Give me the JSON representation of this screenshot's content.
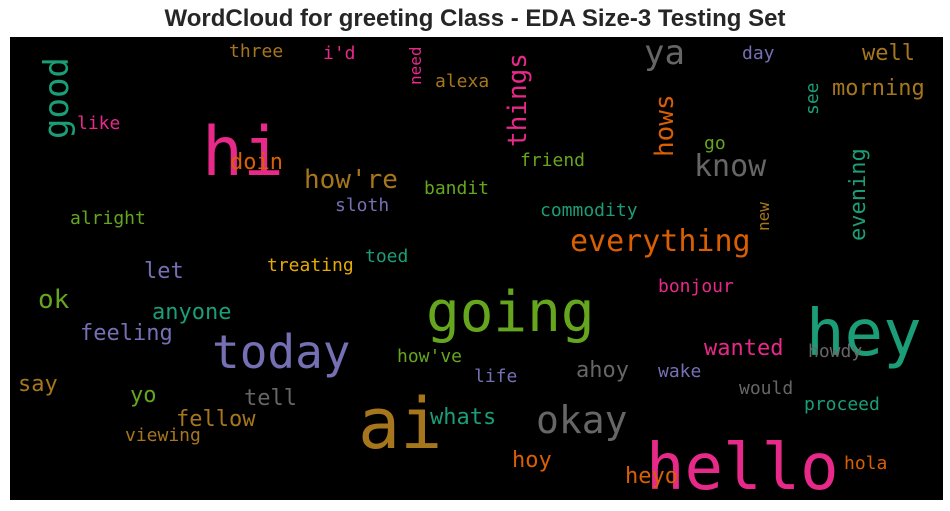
{
  "title": "WordCloud for greeting Class - EDA Size-3 Testing Set",
  "chart_data": {
    "type": "wordcloud",
    "background": "#000000",
    "words": [
      {
        "text": "hey",
        "color": "#1b9e77"
      },
      {
        "text": "hello",
        "color": "#e7298a"
      },
      {
        "text": "hi",
        "color": "#e7298a"
      },
      {
        "text": "ai",
        "color": "#a6761d"
      },
      {
        "text": "going",
        "color": "#66a61e"
      },
      {
        "text": "today",
        "color": "#7570b3"
      },
      {
        "text": "okay",
        "color": "#666666"
      },
      {
        "text": "everything",
        "color": "#d95f02"
      },
      {
        "text": "good",
        "color": "#1b9e77"
      },
      {
        "text": "ya",
        "color": "#666666"
      },
      {
        "text": "know",
        "color": "#666666"
      },
      {
        "text": "things",
        "color": "#e7298a"
      },
      {
        "text": "hows",
        "color": "#d95f02"
      },
      {
        "text": "how're",
        "color": "#a6761d"
      },
      {
        "text": "ok",
        "color": "#66a61e"
      },
      {
        "text": "evening",
        "color": "#1b9e77"
      },
      {
        "text": "morning",
        "color": "#a6761d"
      },
      {
        "text": "well",
        "color": "#a6761d"
      },
      {
        "text": "feeling",
        "color": "#7570b3"
      },
      {
        "text": "anyone",
        "color": "#1b9e77"
      },
      {
        "text": "wanted",
        "color": "#e7298a"
      },
      {
        "text": "fellow",
        "color": "#a6761d"
      },
      {
        "text": "whats",
        "color": "#1b9e77"
      },
      {
        "text": "ahoy",
        "color": "#666666"
      },
      {
        "text": "heyo",
        "color": "#d95f02"
      },
      {
        "text": "hoy",
        "color": "#d95f02"
      },
      {
        "text": "doin",
        "color": "#d95f02"
      },
      {
        "text": "let",
        "color": "#7570b3"
      },
      {
        "text": "tell",
        "color": "#666666"
      },
      {
        "text": "yo",
        "color": "#66a61e"
      },
      {
        "text": "say",
        "color": "#a6761d"
      },
      {
        "text": "proceed",
        "color": "#1b9e77"
      },
      {
        "text": "would",
        "color": "#666666"
      },
      {
        "text": "howdy",
        "color": "#666666"
      },
      {
        "text": "hola",
        "color": "#d95f02"
      },
      {
        "text": "treating",
        "color": "#e6ab02"
      },
      {
        "text": "commodity",
        "color": "#1b9e77"
      },
      {
        "text": "bandit",
        "color": "#66a61e"
      },
      {
        "text": "friend",
        "color": "#66a61e"
      },
      {
        "text": "bonjour",
        "color": "#e7298a"
      },
      {
        "text": "toed",
        "color": "#1b9e77"
      },
      {
        "text": "how've",
        "color": "#66a61e"
      },
      {
        "text": "life",
        "color": "#7570b3"
      },
      {
        "text": "wake",
        "color": "#7570b3"
      },
      {
        "text": "sloth",
        "color": "#7570b3"
      },
      {
        "text": "alright",
        "color": "#66a61e"
      },
      {
        "text": "viewing",
        "color": "#a6761d"
      },
      {
        "text": "three",
        "color": "#a6761d"
      },
      {
        "text": "i'd",
        "color": "#e7298a"
      },
      {
        "text": "alexa",
        "color": "#a6761d"
      },
      {
        "text": "like",
        "color": "#e7298a"
      },
      {
        "text": "need",
        "color": "#e7298a"
      },
      {
        "text": "day",
        "color": "#7570b3"
      },
      {
        "text": "see",
        "color": "#1b9e77"
      },
      {
        "text": "go",
        "color": "#66a61e"
      },
      {
        "text": "new",
        "color": "#a6761d"
      }
    ]
  }
}
